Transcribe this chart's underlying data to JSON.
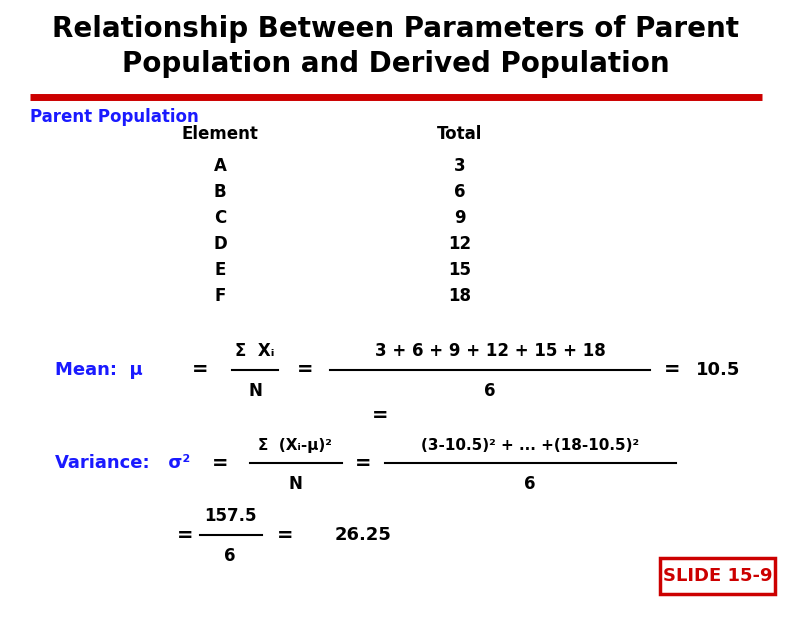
{
  "title_line1": "Relationship Between Parameters of Parent",
  "title_line2": "Population and Derived Population",
  "title_fontsize": 20,
  "title_color": "#000000",
  "bg_color": "#ffffff",
  "red_line_color": "#cc0000",
  "parent_pop_label": "Parent Population",
  "parent_pop_color": "#1a1aff",
  "col1_header": "Element",
  "col2_header": "Total",
  "elements": [
    "A",
    "B",
    "C",
    "D",
    "E",
    "F"
  ],
  "totals": [
    "3",
    "6",
    "9",
    "12",
    "15",
    "18"
  ],
  "mean_label": "Mean:",
  "mean_symbol": "μ",
  "variance_label": "Variance:",
  "variance_symbol": "σ",
  "slide_label": "SLIDE 15-9",
  "slide_bg": "#ffffff",
  "slide_border": "#cc0000",
  "slide_text_color": "#cc0000"
}
